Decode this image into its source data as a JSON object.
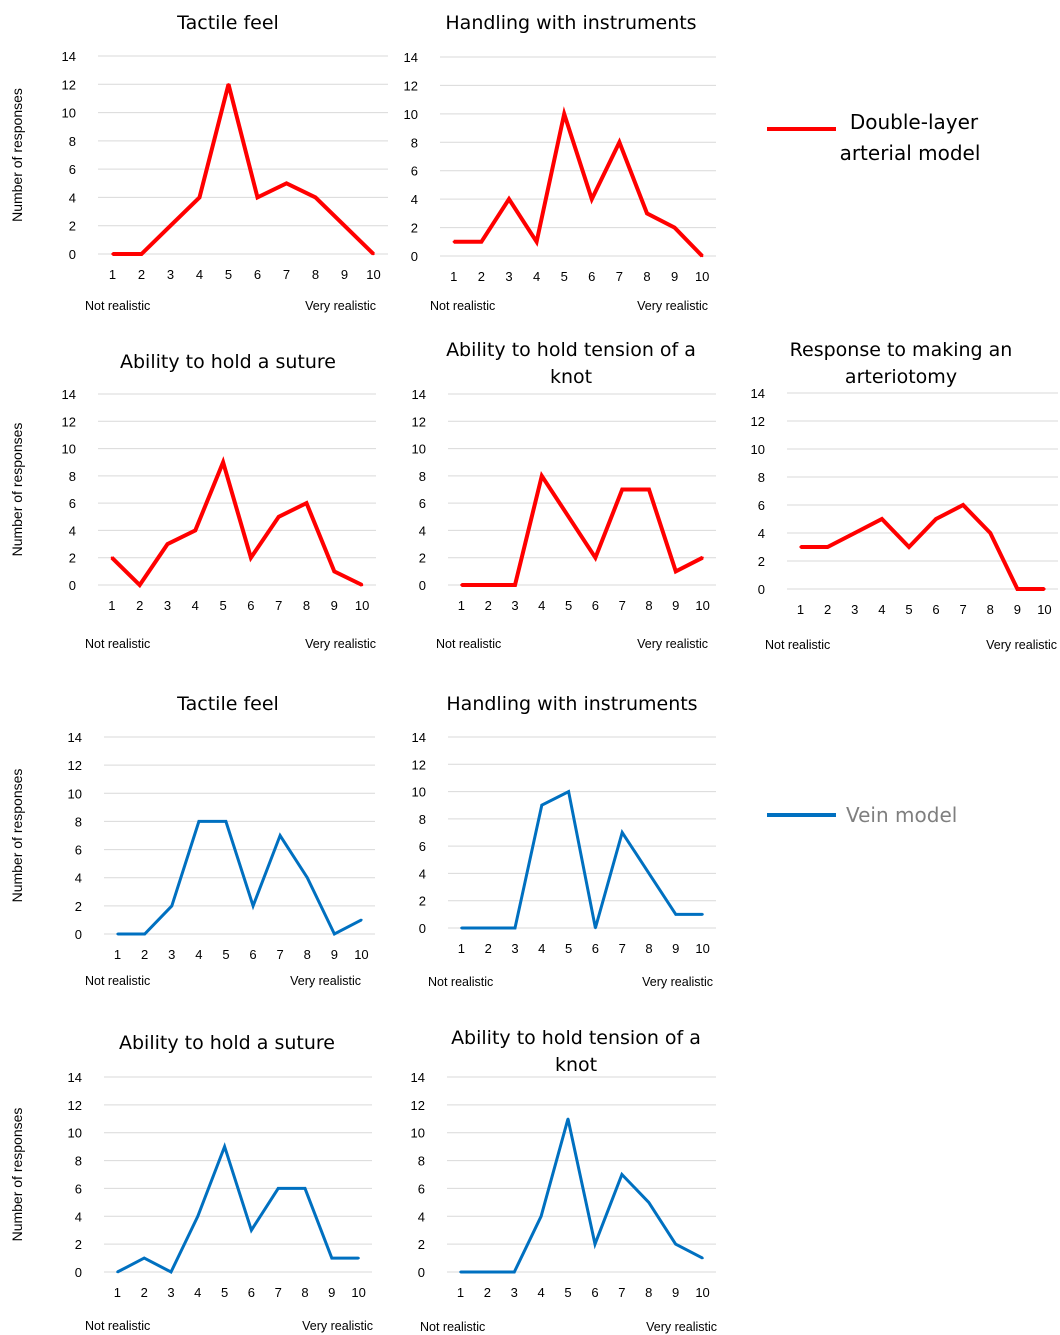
{
  "colors": {
    "arterial": "#ff0000",
    "vein": "#0070c0",
    "vein_legend_text": "#7f7f7f",
    "grid": "#d9d9d9"
  },
  "legends": {
    "arterial": {
      "line1": "Double-layer",
      "line2": "arterial model"
    },
    "vein": {
      "line1": "Vein model"
    }
  },
  "shared": {
    "ylabel": "Number of responses",
    "x_left_label": "Not realistic",
    "x_right_label": "Very realistic",
    "x_ticks": [
      1,
      2,
      3,
      4,
      5,
      6,
      7,
      8,
      9,
      10
    ],
    "y_ticks": [
      0,
      2,
      4,
      6,
      8,
      10,
      12,
      14
    ]
  },
  "chart_data": [
    {
      "type": "line",
      "title": [
        "Tactile feel"
      ],
      "model": "arterial",
      "x": [
        1,
        2,
        3,
        4,
        5,
        6,
        7,
        8,
        9,
        10
      ],
      "ylim": [
        0,
        14
      ],
      "grid": true,
      "values": [
        0,
        0,
        2,
        4,
        12,
        4,
        5,
        4,
        2,
        0
      ]
    },
    {
      "type": "line",
      "title": [
        "Handling with instruments"
      ],
      "model": "arterial",
      "x": [
        1,
        2,
        3,
        4,
        5,
        6,
        7,
        8,
        9,
        10
      ],
      "ylim": [
        0,
        14
      ],
      "grid": true,
      "values": [
        1,
        1,
        4,
        1,
        10,
        4,
        8,
        3,
        2,
        0
      ]
    },
    {
      "type": "line",
      "title": [
        "Ability to hold a suture"
      ],
      "model": "arterial",
      "x": [
        1,
        2,
        3,
        4,
        5,
        6,
        7,
        8,
        9,
        10
      ],
      "ylim": [
        0,
        14
      ],
      "grid": true,
      "values": [
        2,
        0,
        3,
        4,
        9,
        2,
        5,
        6,
        1,
        0
      ]
    },
    {
      "type": "line",
      "title": [
        "Ability to hold tension of a",
        "knot"
      ],
      "model": "arterial",
      "x": [
        1,
        2,
        3,
        4,
        5,
        6,
        7,
        8,
        9,
        10
      ],
      "ylim": [
        0,
        14
      ],
      "grid": true,
      "values": [
        0,
        0,
        0,
        8,
        5,
        2,
        7,
        7,
        1,
        2
      ]
    },
    {
      "type": "line",
      "title": [
        "Response to making an",
        "arteriotomy"
      ],
      "model": "arterial",
      "x": [
        1,
        2,
        3,
        4,
        5,
        6,
        7,
        8,
        9,
        10
      ],
      "ylim": [
        0,
        14
      ],
      "grid": true,
      "values": [
        3,
        3,
        4,
        5,
        3,
        5,
        6,
        4,
        0,
        0
      ]
    },
    {
      "type": "line",
      "title": [
        "Tactile feel"
      ],
      "model": "vein",
      "x": [
        1,
        2,
        3,
        4,
        5,
        6,
        7,
        8,
        9,
        10
      ],
      "ylim": [
        0,
        14
      ],
      "grid": true,
      "values": [
        0,
        0,
        2,
        8,
        8,
        2,
        7,
        4,
        0,
        1
      ]
    },
    {
      "type": "line",
      "title": [
        "Handling with instruments"
      ],
      "model": "vein",
      "x": [
        1,
        2,
        3,
        4,
        5,
        6,
        7,
        8,
        9,
        10
      ],
      "ylim": [
        0,
        14
      ],
      "grid": true,
      "values": [
        0,
        0,
        0,
        9,
        10,
        0,
        7,
        4,
        1,
        1
      ]
    },
    {
      "type": "line",
      "title": [
        "Ability to hold a suture"
      ],
      "model": "vein",
      "x": [
        1,
        2,
        3,
        4,
        5,
        6,
        7,
        8,
        9,
        10
      ],
      "ylim": [
        0,
        14
      ],
      "grid": true,
      "values": [
        0,
        1,
        0,
        4,
        9,
        3,
        6,
        6,
        1,
        1
      ]
    },
    {
      "type": "line",
      "title": [
        "Ability to hold tension of a",
        "knot"
      ],
      "model": "vein",
      "x": [
        1,
        2,
        3,
        4,
        5,
        6,
        7,
        8,
        9,
        10
      ],
      "ylim": [
        0,
        14
      ],
      "grid": true,
      "values": [
        0,
        0,
        0,
        4,
        11,
        2,
        7,
        5,
        2,
        1
      ]
    }
  ]
}
